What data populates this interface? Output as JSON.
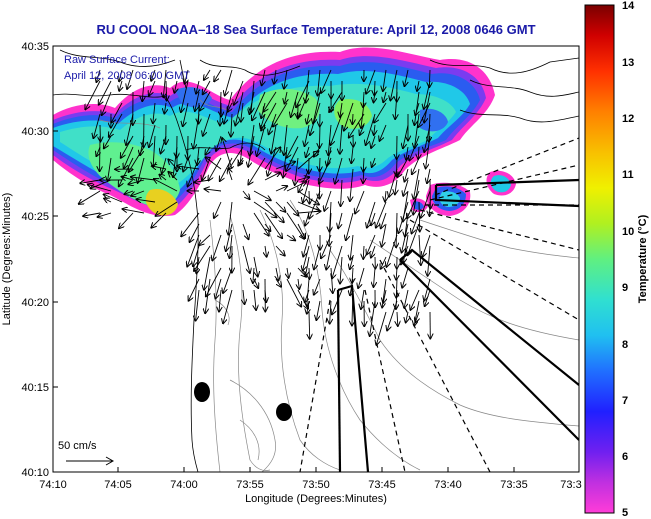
{
  "title": "RU COOL  NOAA–18  Sea Surface Temperature:  April 12, 2008 0646 GMT",
  "current_legend": {
    "line1": "Raw Surface Current:",
    "line2": "April 12, 2008 06:00 GMT"
  },
  "scale_label": "50 cm/s",
  "x_axis": {
    "label": "Longitude (Degrees:Minutes)",
    "ticks": [
      "74:10",
      "74:05",
      "74:00",
      "73:55",
      "73:50",
      "73:45",
      "73:40",
      "73:35",
      "73:3"
    ]
  },
  "y_axis": {
    "label": "Latitude (Degrees:Minutes)",
    "ticks": [
      "40:35",
      "40:30",
      "40:25",
      "40:20",
      "40:15",
      "40:10"
    ]
  },
  "colorbar": {
    "label": "Temperature (°C)",
    "min": 5,
    "max": 14,
    "ticks": [
      "14",
      "13",
      "12",
      "11",
      "10",
      "9",
      "8",
      "7",
      "6",
      "5"
    ]
  },
  "colors": {
    "title": "#1a1aa8",
    "sst_warm": "#e8c020",
    "sst_cool": "#30d0e0",
    "sst_cold": "#2050e0",
    "sst_coldest": "#ff20c0"
  }
}
